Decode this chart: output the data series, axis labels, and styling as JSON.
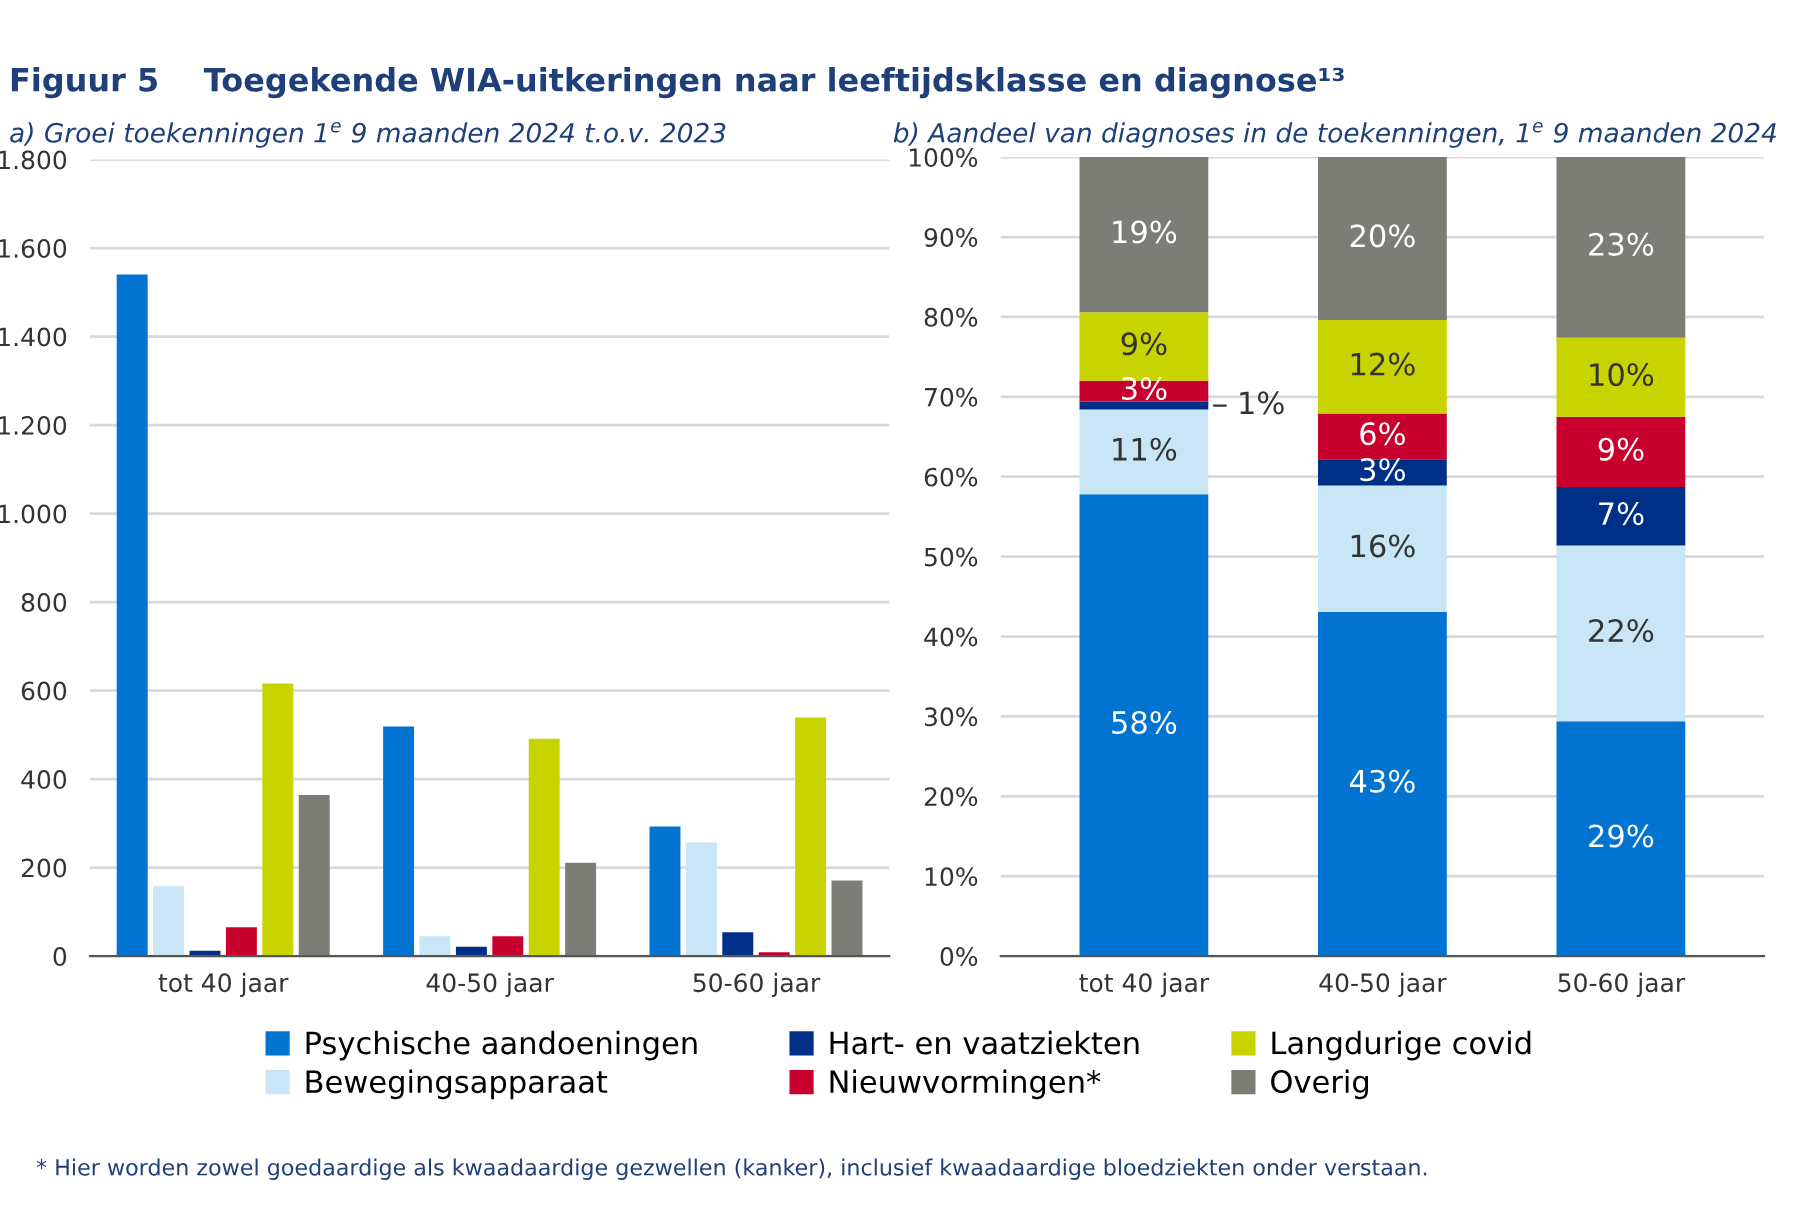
{
  "chart_data": [
    {
      "type": "bar",
      "title": "Figuur 5    Toegekende WIA-uitkeringen naar leeftijdsklasse en diagnose¹³",
      "subtitle": "a) Groei toekenningen 1$^{e}$ 9 maanden 2024 t.o.v. 2023",
      "categories": [
        "tot 40 jaar",
        "40-50 jaar",
        "50-60 jaar"
      ],
      "series": [
        {
          "name": "Psychische aandoeningen",
          "color": "#0074d0",
          "values": [
            1540,
            519,
            293
          ]
        },
        {
          "name": "Bewegingsapparaat",
          "color": "#c8e6f5",
          "values": [
            158,
            45,
            257
          ]
        },
        {
          "name": "Hart- en vaatziekten",
          "color": "#002f87",
          "values": [
            12,
            21,
            54
          ]
        },
        {
          "name": "Nieuwvormingen*",
          "color": "#c8002e",
          "values": [
            65,
            45,
            9
          ]
        },
        {
          "name": "Langdurige covid",
          "color": "#c8d400",
          "values": [
            616,
            491,
            539
          ]
        },
        {
          "name": "Overig",
          "color": "#7d7d78",
          "values": [
            364,
            211,
            171
          ]
        }
      ],
      "ylim": [
        0,
        1800
      ],
      "yticks": [
        0,
        200,
        400,
        600,
        800,
        {
          "value": 1000,
          "label": "1.000"
        },
        {
          "value": 1200,
          "label": "1.200"
        },
        {
          "value": 1400,
          "label": "1.400"
        },
        {
          "value": 1600,
          "label": "1.600"
        },
        {
          "value": 1800,
          "label": "1.800"
        }
      ],
      "grid": "y",
      "legend": "bottom",
      "annotations": [
        "* Hier worden zowel goedaardige als kwaadaardige gezwellen (kanker), inclusief kwaadaardige bloedziekten onder verstaan."
      ]
    },
    {
      "type": "bar",
      "stacked": true,
      "title": "b) Aandeel van diagnoses in de toekenningen, 1$^{e}$ 9 maanden 2024",
      "categories": [
        "tot 40 jaar",
        "40-50 jaar",
        "50-60 jaar"
      ],
      "series": [
        {
          "color": "#0074d0",
          "values": [
            57.8,
            43.1,
            29.4
          ],
          "value_labels": [
            "58%",
            "43%",
            "29%"
          ]
        },
        {
          "color": "#c8e6f5",
          "values": [
            10.6,
            15.8,
            22.0
          ],
          "value_labels": [
            "11%",
            "16%",
            "22%"
          ]
        },
        {
          "color": "#002f87",
          "values": [
            1.0,
            3.3,
            7.3
          ],
          "value_labels": [
            "1%",
            "3%",
            "7%"
          ]
        },
        {
          "color": "#c8002e",
          "values": [
            2.6,
            5.7,
            8.8
          ],
          "value_labels": [
            "3%",
            "6%",
            "9%"
          ]
        },
        {
          "color": "#c8d400",
          "values": [
            8.6,
            11.7,
            9.9
          ],
          "value_labels": [
            "9%",
            "12%",
            "10%"
          ]
        },
        {
          "color": "#7d7d78",
          "values": [
            19.4,
            20.4,
            22.7
          ],
          "value_labels": [
            "19%",
            "20%",
            "23%"
          ]
        }
      ],
      "ylim": [
        0,
        100
      ],
      "yticks": [
        {
          "value": 0,
          "label": "0%"
        },
        {
          "value": 10,
          "label": "10%"
        },
        {
          "value": 20,
          "label": "20%"
        },
        {
          "value": 30,
          "label": "30%"
        },
        {
          "value": 40,
          "label": "40%"
        },
        {
          "value": 50,
          "label": "50%"
        },
        {
          "value": 60,
          "label": "60%"
        },
        {
          "value": 70,
          "label": "70%"
        },
        {
          "value": 80,
          "label": "80%"
        },
        {
          "value": 90,
          "label": "90%"
        },
        {
          "value": 100,
          "label": "100%"
        }
      ],
      "grid": "y"
    }
  ]
}
